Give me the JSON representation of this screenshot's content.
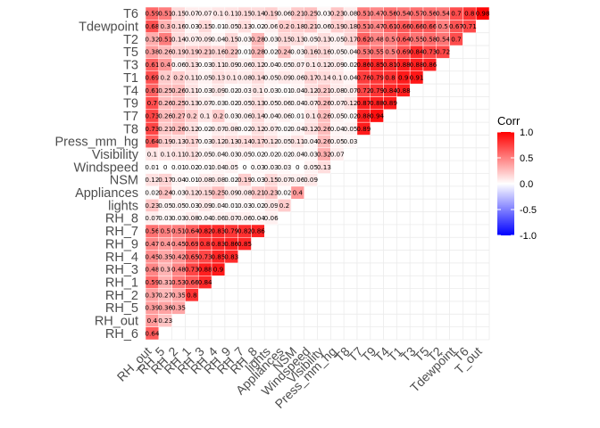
{
  "chart_data": {
    "type": "heatmap",
    "title": "",
    "xlabel": "",
    "ylabel": "",
    "variables": [
      "RH_6",
      "RH_out",
      "RH_5",
      "RH_2",
      "RH_1",
      "RH_3",
      "RH_4",
      "RH_9",
      "RH_7",
      "RH_8",
      "lights",
      "Appliances",
      "NSM",
      "Windspeed",
      "Visibility",
      "Press_mm_hg",
      "T8",
      "T7",
      "T9",
      "T4",
      "T1",
      "T3",
      "T5",
      "T2",
      "Tdewpoint",
      "T6",
      "T_out"
    ],
    "x_tick_labels": [
      "RH_out",
      "RH_5",
      "RH_2",
      "RH_1",
      "RH_3",
      "RH_4",
      "RH_9",
      "RH_7",
      "RH_8",
      "lights",
      "Appliances",
      "NSM",
      "Windspeed",
      "Visibility",
      "Press_mm_hg",
      "T8",
      "T7",
      "T9",
      "T4",
      "T1",
      "T3",
      "T5",
      "T2",
      "Tdewpoint",
      "T6",
      "T_out"
    ],
    "y_tick_labels": [
      "T6",
      "Tdewpoint",
      "T2",
      "T5",
      "T3",
      "T1",
      "T4",
      "T9",
      "T7",
      "T8",
      "Press_mm_hg",
      "Visibility",
      "Windspeed",
      "NSM",
      "Appliances",
      "lights",
      "RH_8",
      "RH_7",
      "RH_9",
      "RH_4",
      "RH_3",
      "RH_1",
      "RH_2",
      "RH_5",
      "RH_out",
      "RH_6"
    ],
    "rows": [
      {
        "name": "RH_out",
        "values": [
          0.64
        ]
      },
      {
        "name": "RH_5",
        "values": [
          0.4,
          0.23
        ]
      },
      {
        "name": "RH_2",
        "values": [
          0.39,
          0.36,
          0.35
        ]
      },
      {
        "name": "RH_1",
        "values": [
          0.37,
          0.27,
          0.35,
          0.8
        ]
      },
      {
        "name": "RH_3",
        "values": [
          0.59,
          0.31,
          0.53,
          0.66,
          0.84
        ]
      },
      {
        "name": "RH_4",
        "values": [
          0.48,
          0.3,
          0.48,
          0.73,
          0.88,
          0.9
        ]
      },
      {
        "name": "RH_9",
        "values": [
          0.45,
          0.35,
          0.42,
          0.65,
          0.73,
          0.85,
          0.83
        ]
      },
      {
        "name": "RH_7",
        "values": [
          0.47,
          0.4,
          0.45,
          0.69,
          0.8,
          0.83,
          0.86,
          0.85
        ]
      },
      {
        "name": "RH_8",
        "values": [
          0.56,
          0.5,
          0.51,
          0.64,
          0.82,
          0.83,
          0.79,
          0.82,
          0.86
        ]
      },
      {
        "name": "lights",
        "values": [
          0.07,
          0.03,
          0.03,
          0.08,
          0.04,
          0.06,
          0.07,
          0.06,
          0.04,
          0.06
        ]
      },
      {
        "name": "Appliances",
        "values": [
          0.23,
          0.05,
          0.05,
          0.03,
          0.09,
          0.04,
          0.01,
          0.03,
          0.02,
          0.09,
          0.2
        ]
      },
      {
        "name": "NSM",
        "values": [
          0.02,
          0.24,
          0.03,
          0.12,
          0.15,
          0.25,
          0.09,
          0.08,
          0.21,
          0.23,
          0.02,
          0.4
        ]
      },
      {
        "name": "Windspeed",
        "values": [
          0.12,
          0.17,
          0.04,
          0.01,
          0.08,
          0.08,
          0.02,
          0.19,
          0.03,
          0.15,
          0.07,
          0.06,
          0.09
        ]
      },
      {
        "name": "Visibility",
        "values": [
          0.01,
          0.0,
          0.01,
          0.02,
          0.01,
          0.04,
          0.05,
          0.0,
          0.03,
          0.03,
          0.03,
          0.0,
          0.05,
          0.13
        ]
      },
      {
        "name": "Press_mm_hg",
        "values": [
          0.1,
          0.1,
          0.11,
          0.12,
          0.05,
          0.04,
          0.03,
          0.05,
          0.02,
          0.02,
          0.02,
          0.04,
          0.03,
          0.32,
          0.07
        ]
      },
      {
        "name": "T8",
        "values": [
          0.64,
          0.19,
          0.13,
          0.17,
          0.03,
          0.12,
          0.13,
          0.14,
          0.17,
          0.12,
          0.05,
          0.11,
          0.04,
          0.26,
          0.05,
          0.03
        ]
      },
      {
        "name": "T7",
        "values": [
          0.73,
          0.21,
          0.26,
          0.12,
          0.02,
          0.07,
          0.08,
          0.02,
          0.12,
          0.07,
          0.02,
          0.04,
          0.12,
          0.26,
          0.04,
          0.05,
          0.89
        ]
      },
      {
        "name": "T9",
        "values": [
          0.73,
          0.26,
          0.27,
          0.2,
          0.1,
          0.2,
          0.03,
          0.06,
          0.14,
          0.04,
          0.06,
          0.01,
          0.1,
          0.26,
          0.05,
          0.02,
          0.88,
          0.94
        ]
      },
      {
        "name": "T4",
        "values": [
          0.7,
          0.26,
          0.25,
          0.13,
          0.07,
          0.03,
          0.02,
          0.05,
          0.13,
          0.05,
          0.06,
          0.04,
          0.07,
          0.26,
          0.07,
          0.12,
          0.87,
          0.88,
          0.89
        ]
      },
      {
        "name": "T1",
        "values": [
          0.61,
          0.25,
          0.26,
          0.11,
          0.03,
          0.09,
          0.02,
          0.03,
          0.1,
          0.03,
          0.01,
          0.04,
          0.12,
          0.21,
          0.08,
          0.07,
          0.72,
          0.79,
          0.84,
          0.88
        ]
      },
      {
        "name": "T3",
        "values": [
          0.69,
          0.2,
          0.2,
          0.11,
          0.05,
          0.13,
          0.1,
          0.08,
          0.14,
          0.05,
          0.09,
          0.06,
          0.17,
          0.14,
          0.1,
          0.04,
          0.76,
          0.79,
          0.8,
          0.9,
          0.91
        ]
      },
      {
        "name": "T5",
        "values": [
          0.61,
          0.4,
          0.06,
          0.13,
          0.03,
          0.11,
          0.09,
          0.06,
          0.12,
          0.04,
          0.05,
          0.07,
          0.1,
          0.12,
          0.09,
          0.02,
          0.86,
          0.85,
          0.81,
          0.88,
          0.88,
          0.86
        ]
      },
      {
        "name": "T2",
        "values": [
          0.38,
          0.26,
          0.19,
          0.19,
          0.21,
          0.16,
          0.22,
          0.01,
          0.28,
          0.02,
          0.24,
          0.03,
          0.16,
          0.16,
          0.05,
          0.04,
          0.53,
          0.55,
          0.5,
          0.69,
          0.84,
          0.73,
          0.72
        ]
      },
      {
        "name": "Tdewpoint",
        "values": [
          0.32,
          0.51,
          0.14,
          0.07,
          0.09,
          0.04,
          0.15,
          0.03,
          0.28,
          0.03,
          0.15,
          0.13,
          0.05,
          0.13,
          0.05,
          0.17,
          0.62,
          0.48,
          0.5,
          0.64,
          0.55,
          0.58,
          0.54,
          0.7
        ]
      },
      {
        "name": "T6",
        "values": [
          0.68,
          0.3,
          0.16,
          0.03,
          0.15,
          0.01,
          0.05,
          0.13,
          0.02,
          0.06,
          0.2,
          0.18,
          0.21,
          0.06,
          0.19,
          0.18,
          0.51,
          0.47,
          0.61,
          0.66,
          0.66,
          0.66,
          0.5,
          0.67,
          0.71
        ]
      },
      {
        "name": "T_out",
        "values": [
          0.59,
          0.51,
          0.15,
          0.07,
          0.07,
          0.1,
          0.11,
          0.15,
          0.14,
          0.19,
          0.06,
          0.21,
          0.25,
          0.03,
          0.23,
          0.08,
          0.51,
          0.47,
          0.56,
          0.54,
          0.57,
          0.56,
          0.54,
          0.7,
          0.8,
          0.98
        ]
      }
    ],
    "legend": {
      "title": "Corr",
      "ticks": [
        "1.0",
        "0.5",
        "0.0",
        "-0.5",
        "-1.0"
      ],
      "range": [
        -1,
        1
      ],
      "colors": {
        "low": "#0000ff",
        "mid": "#ffffff",
        "high": "#ff0000"
      }
    },
    "grid": true,
    "legend_position": "right"
  }
}
